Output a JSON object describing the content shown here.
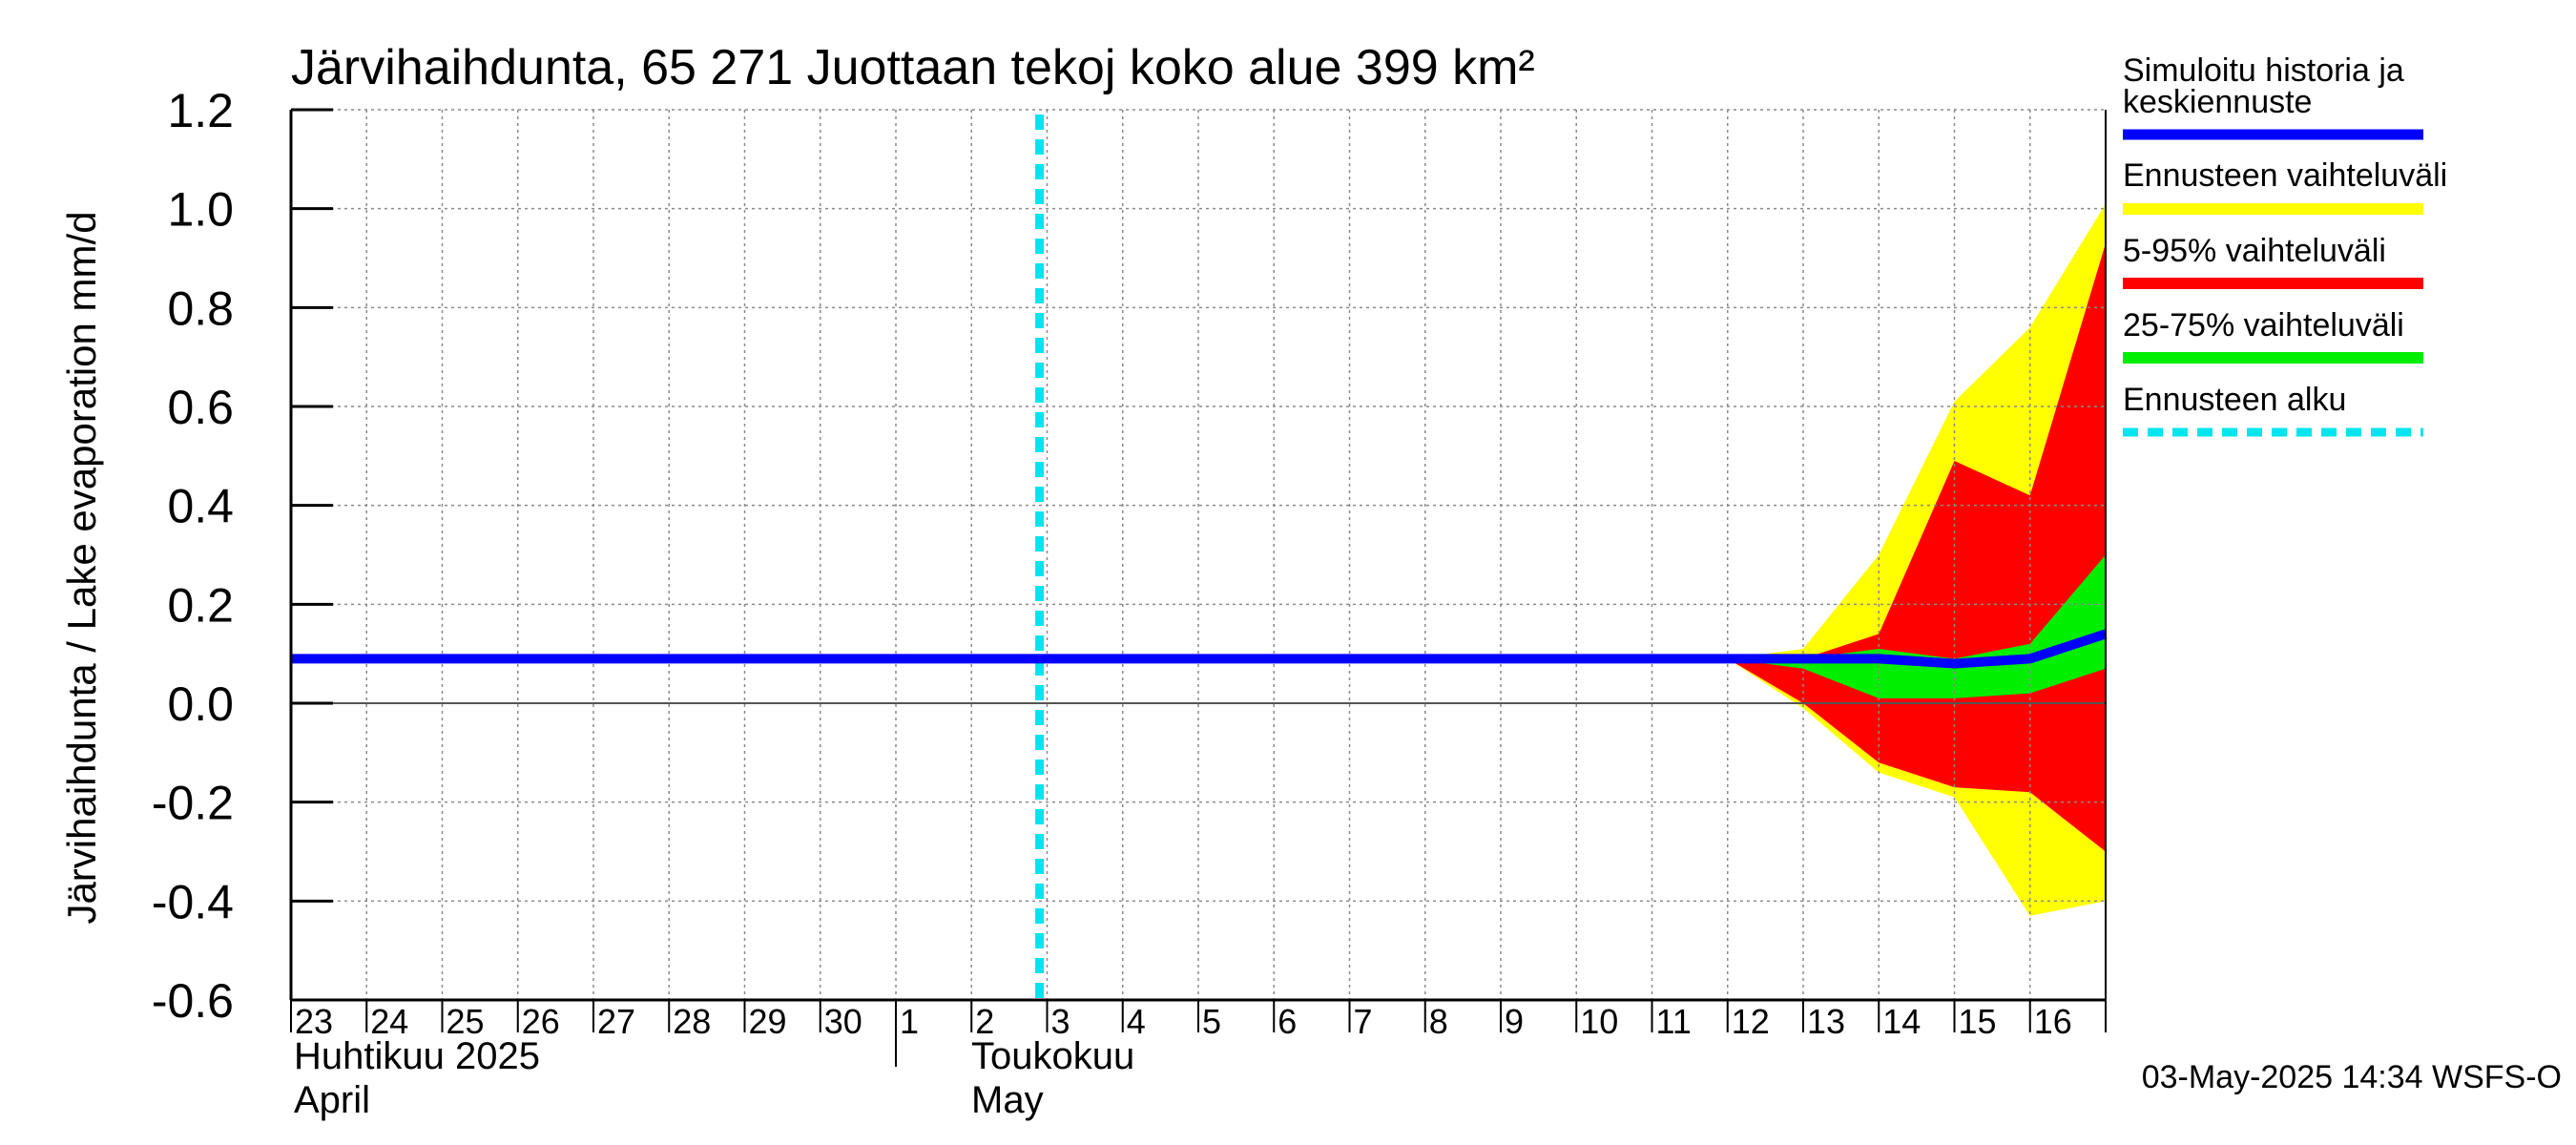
{
  "chart_data": {
    "type": "area",
    "title": "Järvihaihdunta, 65 271 Juottaan tekoj koko alue 399 km²",
    "ylabel": "Järvihaihdunta / Lake evaporation   mm/d",
    "ylim": [
      -0.6,
      1.2
    ],
    "yticks": [
      "1.2",
      "1.0",
      "0.8",
      "0.6",
      "0.4",
      "0.2",
      "0.0",
      "-0.2",
      "-0.4",
      "-0.6"
    ],
    "ytick_values": [
      1.2,
      1.0,
      0.8,
      0.6,
      0.4,
      0.2,
      0.0,
      -0.2,
      -0.4,
      -0.6
    ],
    "x_day_labels": [
      "23",
      "24",
      "25",
      "26",
      "27",
      "28",
      "29",
      "30",
      "1",
      "2",
      "3",
      "4",
      "5",
      "6",
      "7",
      "8",
      "9",
      "10",
      "11",
      "12",
      "13",
      "14",
      "15",
      "16"
    ],
    "month_labels": [
      {
        "fi": "Huhtikuu  2025",
        "en": "April"
      },
      {
        "fi": "Toukokuu",
        "en": "May"
      }
    ],
    "forecast_start_day_index": 9.9,
    "x_index_max": 24,
    "grid": true,
    "series": [
      {
        "name": "Simuloitu historia ja keskiennuste",
        "x": [
          0,
          19,
          20,
          21,
          22,
          23,
          24
        ],
        "values": [
          0.09,
          0.09,
          0.09,
          0.09,
          0.08,
          0.09,
          0.14
        ]
      },
      {
        "name": "Ennusteen vaihteluväli",
        "x": [
          19,
          20,
          21,
          22,
          23,
          24
        ],
        "lower": [
          0.09,
          -0.01,
          -0.14,
          -0.19,
          -0.43,
          -0.4
        ],
        "upper": [
          0.09,
          0.11,
          0.3,
          0.61,
          0.76,
          1.01
        ]
      },
      {
        "name": "5-95% vaihteluväli",
        "x": [
          19,
          20,
          21,
          22,
          23,
          24
        ],
        "lower": [
          0.09,
          0.0,
          -0.12,
          -0.17,
          -0.18,
          -0.3
        ],
        "upper": [
          0.09,
          0.09,
          0.14,
          0.49,
          0.42,
          0.93
        ]
      },
      {
        "name": "25-75% vaihteluväli",
        "x": [
          19,
          20,
          21,
          22,
          23,
          24
        ],
        "lower": [
          0.09,
          0.07,
          0.01,
          0.01,
          0.02,
          0.07
        ],
        "upper": [
          0.09,
          0.09,
          0.11,
          0.09,
          0.12,
          0.3
        ]
      }
    ],
    "legend": [
      {
        "label": "Simuloitu historia ja keskiennuste",
        "color": "#0000ff",
        "style": "line"
      },
      {
        "label": "Ennusteen vaihteluväli",
        "color": "#ffff00",
        "style": "band"
      },
      {
        "label": "5-95% vaihteluväli",
        "color": "#ff0000",
        "style": "band"
      },
      {
        "label": "25-75% vaihteluväli",
        "color": "#00ee00",
        "style": "band"
      },
      {
        "label": "Ennusteen alku",
        "color": "#00e5ee",
        "style": "dashed"
      }
    ],
    "footer": "03-May-2025 14:34 WSFS-O"
  }
}
